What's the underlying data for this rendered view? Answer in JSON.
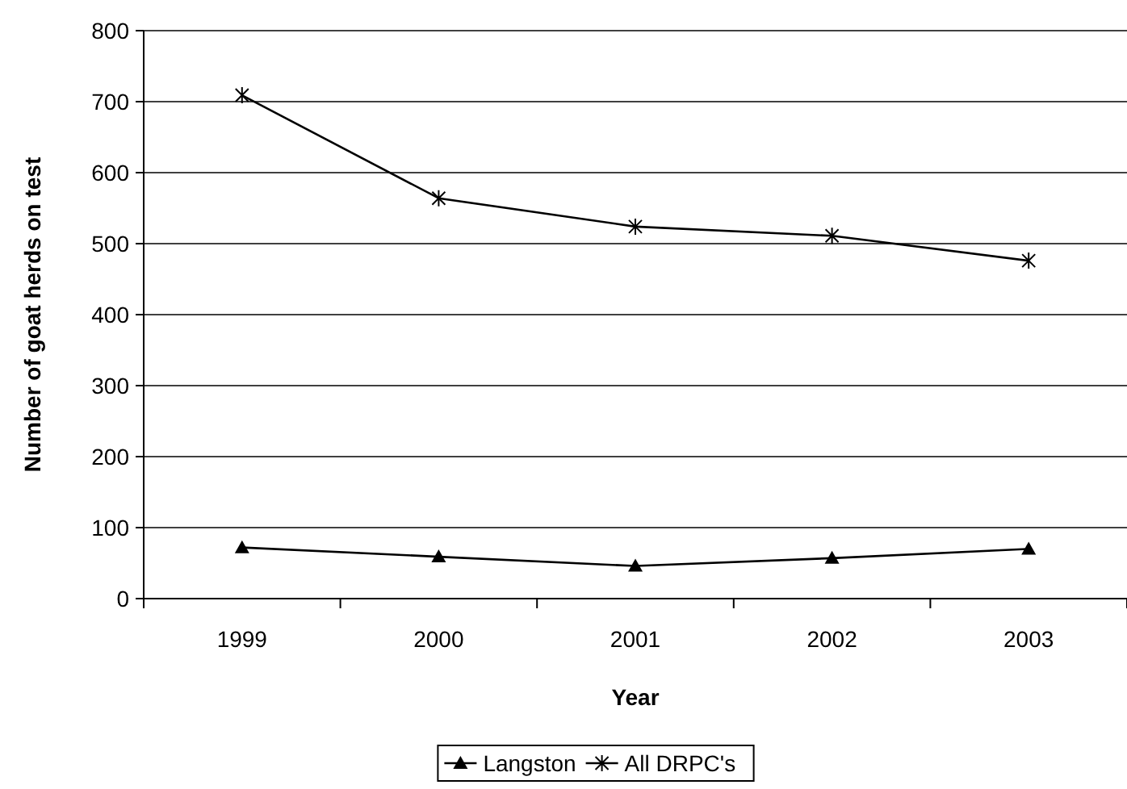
{
  "chart_data": {
    "type": "line",
    "xlabel": "Year",
    "ylabel": "Number of goat herds on test",
    "categories": [
      "1999",
      "2000",
      "2001",
      "2002",
      "2003"
    ],
    "series": [
      {
        "name": "Langston",
        "color": "#000000",
        "marker": "triangle",
        "values": [
          72,
          59,
          46,
          57,
          70
        ]
      },
      {
        "name": "All DRPC's",
        "color": "#000000",
        "marker": "cross",
        "values": [
          709,
          564,
          524,
          511,
          476
        ]
      }
    ],
    "ylim": [
      0,
      800
    ],
    "yticks": [
      0,
      100,
      200,
      300,
      400,
      500,
      600,
      700,
      800
    ],
    "grid": "y",
    "legend": "bottom",
    "line_style": "solid"
  }
}
